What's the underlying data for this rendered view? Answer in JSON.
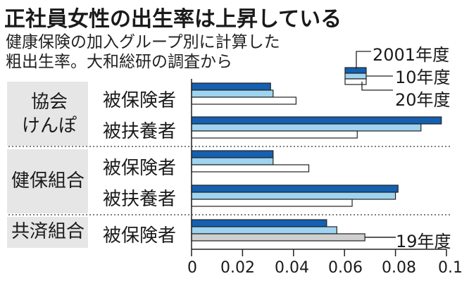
{
  "title": "正社員女性の出生率は上昇している",
  "subtitle_lines": [
    "健康保険の加入グループ別に計算した",
    "粗出生率。大和総研の調査から"
  ],
  "colors": {
    "y2001": "#1560b0",
    "y2010": "#9fd4f0",
    "y2020": "#ffffff",
    "y2019": "#cfcfcf",
    "band": "#e6e6e6",
    "stroke": "#222222"
  },
  "chart_data": {
    "type": "bar",
    "orientation": "horizontal",
    "title": "正社員女性の出生率は上昇している",
    "xlim": [
      0,
      0.1
    ],
    "x_ticks": [
      "0",
      "0.02",
      "0.04",
      "0.06",
      "0.08",
      "0.1"
    ],
    "legend": [
      "2001年度",
      "10年度",
      "20年度"
    ],
    "annotation": "19年度",
    "groups": [
      {
        "label": [
          "協会",
          "けんぽ"
        ],
        "rows": [
          {
            "label": "被保険者",
            "values": [
              0.031,
              0.032,
              0.041
            ],
            "years": [
              "2001年度",
              "10年度",
              "20年度"
            ]
          },
          {
            "label": "被扶養者",
            "values": [
              0.098,
              0.09,
              0.065
            ],
            "years": [
              "2001年度",
              "10年度",
              "20年度"
            ]
          }
        ]
      },
      {
        "label": [
          "健保組合"
        ],
        "rows": [
          {
            "label": "被保険者",
            "values": [
              0.032,
              0.032,
              0.046
            ],
            "years": [
              "2001年度",
              "10年度",
              "20年度"
            ]
          },
          {
            "label": "被扶養者",
            "values": [
              0.081,
              0.08,
              0.063
            ],
            "years": [
              "2001年度",
              "10年度",
              "20年度"
            ]
          }
        ]
      },
      {
        "label": [
          "共済組合"
        ],
        "rows": [
          {
            "label": "被保険者",
            "values": [
              0.053,
              0.057,
              0.068
            ],
            "years": [
              "2001年度",
              "10年度",
              "19年度"
            ]
          }
        ]
      }
    ]
  }
}
